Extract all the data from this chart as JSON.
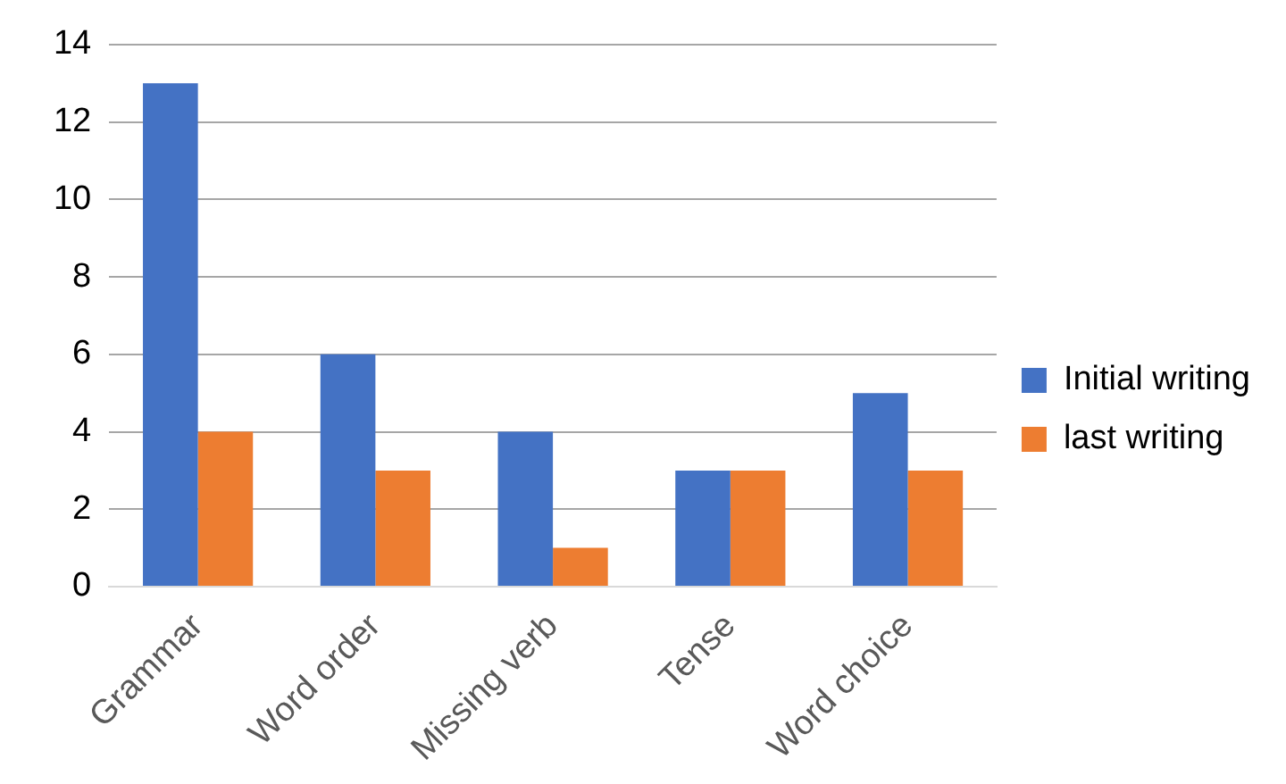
{
  "chart_data": {
    "type": "bar",
    "categories": [
      "Grammar",
      "Word order",
      "Missing verb",
      "Tense",
      "Word choice"
    ],
    "series": [
      {
        "name": "Initial writing",
        "color": "#4472c4",
        "values": [
          13,
          6,
          4,
          3,
          5
        ]
      },
      {
        "name": "last writing",
        "color": "#ed7d31",
        "values": [
          4,
          3,
          1,
          3,
          3
        ]
      }
    ],
    "ylim": [
      0,
      14
    ],
    "yticks": [
      0,
      2,
      4,
      6,
      8,
      10,
      12,
      14
    ],
    "grid": "y",
    "legend": "right"
  }
}
